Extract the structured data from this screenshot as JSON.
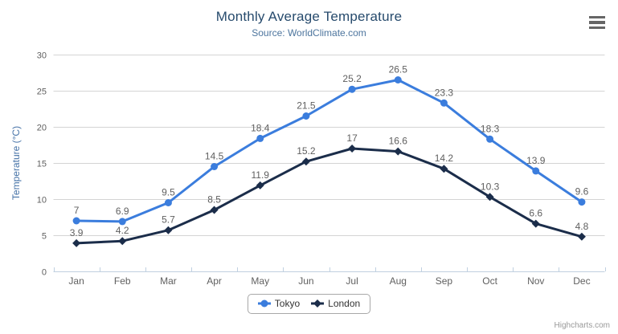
{
  "chart": {
    "title": "Monthly Average Temperature",
    "subtitle": "Source: WorldClimate.com",
    "y_axis_title": "Temperature (°C)",
    "credits": "Highcharts.com"
  },
  "colors": {
    "title": "#274b6d",
    "subtitle": "#4d759e",
    "axis_title": "#4572a7",
    "axis_labels": "#606060",
    "data_labels": "#606060",
    "grid_line": "#d4d4d4",
    "x_axis_line": "#c0d0e0",
    "tokyo": "#3b7ddd",
    "london": "#1b2d4a"
  },
  "chart_data": {
    "type": "line",
    "title": "Monthly Average Temperature",
    "subtitle": "Source: WorldClimate.com",
    "categories": [
      "Jan",
      "Feb",
      "Mar",
      "Apr",
      "May",
      "Jun",
      "Jul",
      "Aug",
      "Sep",
      "Oct",
      "Nov",
      "Dec"
    ],
    "series": [
      {
        "name": "Tokyo",
        "color": "#3b7ddd",
        "marker": "circle",
        "values": [
          7,
          6.9,
          9.5,
          14.5,
          18.4,
          21.5,
          25.2,
          26.5,
          23.3,
          18.3,
          13.9,
          9.6
        ]
      },
      {
        "name": "London",
        "color": "#1b2d4a",
        "marker": "diamond",
        "values": [
          3.9,
          4.2,
          5.7,
          8.5,
          11.9,
          15.2,
          17,
          16.6,
          14.2,
          10.3,
          6.6,
          4.8
        ]
      }
    ],
    "xlabel": "",
    "ylabel": "Temperature (°C)",
    "ylim": [
      0,
      30
    ],
    "yticks": [
      0,
      5,
      10,
      15,
      20,
      25,
      30
    ],
    "grid": true,
    "data_labels": true,
    "legend_position": "bottom"
  }
}
